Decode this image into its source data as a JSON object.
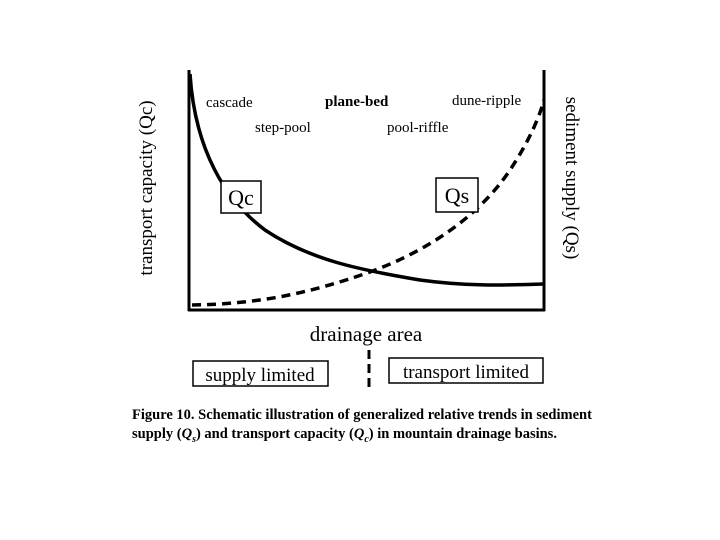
{
  "y_left_label": "transport capacity (Qc)",
  "y_right_label": "sediment supply (Qs)",
  "x_label": "drainage area",
  "morphologies": {
    "cascade": "cascade",
    "plane_bed": "plane-bed",
    "dune_ripple": "dune-ripple",
    "step_pool": "step-pool",
    "pool_riffle": "pool-riffle"
  },
  "curve_labels": {
    "qc": "Qc",
    "qs": "Qs"
  },
  "regimes": {
    "left": "supply limited",
    "right": "transport limited"
  },
  "caption": {
    "prefix": "Figure 10. Schematic illustration of generalized relative trends in sediment supply (",
    "qs_symbol": "Q",
    "qs_sub": "s",
    "middle": ") and transport capacity (",
    "qc_symbol": "Q",
    "qc_sub": "c",
    "suffix": ") in mountain drainage basins."
  }
}
